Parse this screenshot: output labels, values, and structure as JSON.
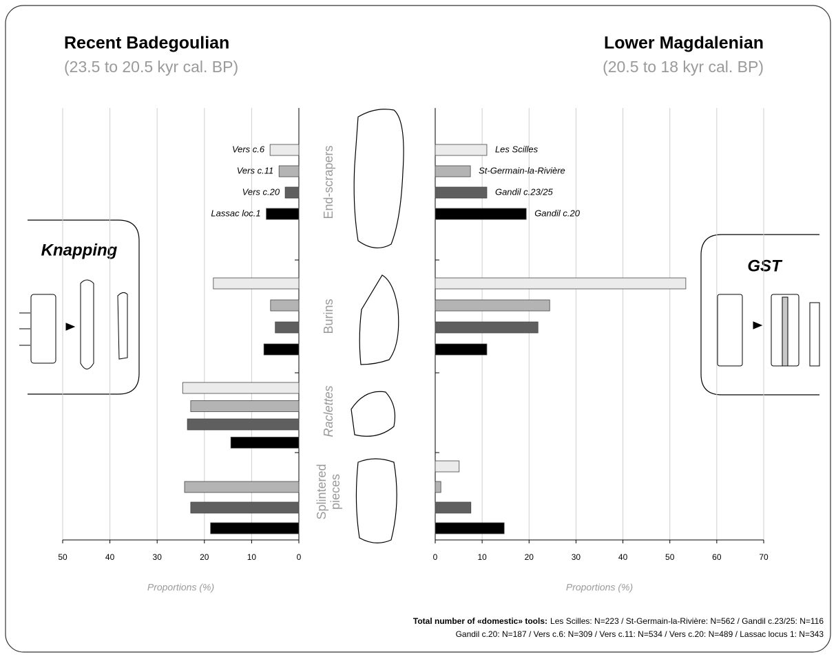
{
  "chart_data": [
    {
      "type": "bar",
      "orientation": "horizontal",
      "title": "Recent Badegoulian",
      "subtitle": "(23.5 to 20.5 kyr cal. BP)",
      "categories": [
        "End-scrapers",
        "Burins",
        "Raclettes",
        "Splintered pieces"
      ],
      "series": [
        {
          "name": "Vers c.6",
          "color": "#ebebeb",
          "values": [
            6.1,
            18.1,
            24.6,
            0
          ]
        },
        {
          "name": "Vers c.11",
          "color": "#b4b4b4",
          "values": [
            4.2,
            6.0,
            22.9,
            24.2
          ]
        },
        {
          "name": "Vers c.20",
          "color": "#5f5f5f",
          "values": [
            2.9,
            5.0,
            23.6,
            22.9
          ]
        },
        {
          "name": "Lassac loc.1",
          "color": "#000000",
          "values": [
            6.9,
            7.4,
            14.4,
            18.7
          ]
        }
      ],
      "xlim": [
        50,
        0
      ],
      "xticks": [
        50,
        40,
        30,
        20,
        10,
        0
      ],
      "xlabel": "Proportions (%)",
      "grid": true
    },
    {
      "type": "bar",
      "orientation": "horizontal",
      "title": "Lower Magdalenian",
      "subtitle": "(20.5 to 18 kyr cal. BP)",
      "series": [
        {
          "name": "Les Scilles",
          "color": "#ebebeb",
          "values": [
            11.0,
            53.4,
            0,
            5.1
          ]
        },
        {
          "name": "St-Germain-la-Rivière",
          "color": "#b4b4b4",
          "values": [
            7.5,
            24.4,
            0,
            1.2
          ]
        },
        {
          "name": "Gandil c.23/25",
          "color": "#5f5f5f",
          "values": [
            11.0,
            21.9,
            0,
            7.6
          ]
        },
        {
          "name": "Gandil c.20",
          "color": "#000000",
          "values": [
            19.4,
            11.0,
            0,
            14.7
          ]
        }
      ],
      "xlim": [
        0,
        70
      ],
      "xticks": [
        0,
        10,
        20,
        30,
        40,
        50,
        60,
        70
      ],
      "xlabel": "Proportions (%)",
      "grid": true
    }
  ],
  "panels": {
    "left": "Knapping",
    "right": "GST"
  },
  "footnote": {
    "label": "Total number of «domestic» tools:",
    "line1": "Les Scilles: N=223 / St-Germain-la-Rivière: N=562 / Gandil c.23/25: N=116",
    "line2": "Gandil c.20: N=187 / Vers c.6: N=309 / Vers c.11: N=534 / Vers c.20: N=489 / Lassac locus 1: N=343"
  }
}
